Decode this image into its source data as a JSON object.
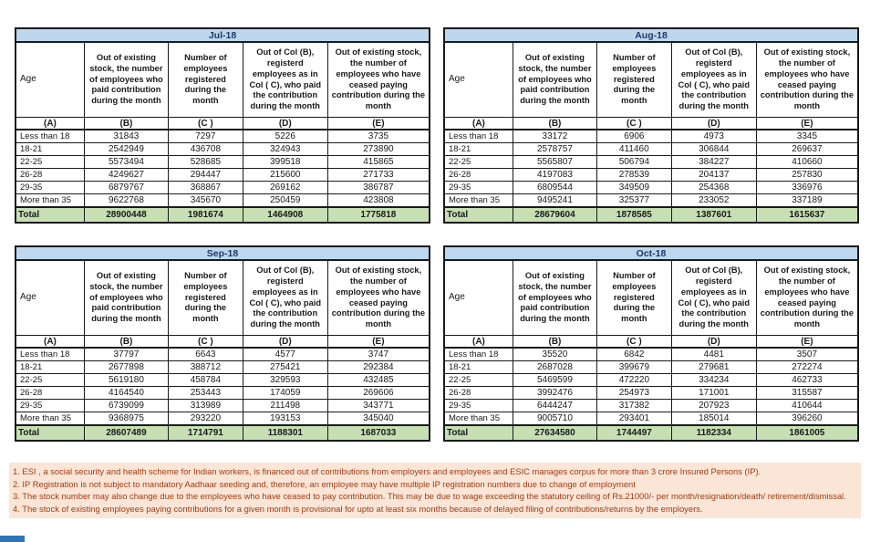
{
  "table_headers": {
    "age_label": "Age",
    "col_descriptions": [
      "Out of existing stock, the number of employees who paid contribution during the month",
      "Number of employees registered during the month",
      "Out of Col (B), registerd employees as in Col ( C), who paid the contribution during the month",
      "Out of existing stock, the number of  employees who have ceased paying contribution during the month"
    ],
    "column_letters": [
      "(A)",
      "(B)",
      "(C )",
      "(D)",
      "(E)"
    ]
  },
  "age_groups": [
    "Less than 18",
    "18-21",
    "22-25",
    "26-28",
    "29-35",
    "More than 35"
  ],
  "total_label": "Total",
  "months": [
    {
      "title": "Jul-18",
      "rows": [
        [
          "31843",
          "7297",
          "5226",
          "3735"
        ],
        [
          "2542949",
          "436708",
          "324943",
          "273890"
        ],
        [
          "5573494",
          "528685",
          "399518",
          "415865"
        ],
        [
          "4249627",
          "294447",
          "215600",
          "271733"
        ],
        [
          "6879767",
          "368867",
          "269162",
          "386787"
        ],
        [
          "9622768",
          "345670",
          "250459",
          "423808"
        ]
      ],
      "totals": [
        "28900448",
        "1981674",
        "1464908",
        "1775818"
      ]
    },
    {
      "title": "Aug-18",
      "rows": [
        [
          "33172",
          "6906",
          "4973",
          "3345"
        ],
        [
          "2578757",
          "411460",
          "306844",
          "269637"
        ],
        [
          "5565807",
          "506794",
          "384227",
          "410660"
        ],
        [
          "4197083",
          "278539",
          "204137",
          "257830"
        ],
        [
          "6809544",
          "349509",
          "254368",
          "336976"
        ],
        [
          "9495241",
          "325377",
          "233052",
          "337189"
        ]
      ],
      "totals": [
        "28679604",
        "1878585",
        "1387601",
        "1615637"
      ]
    },
    {
      "title": "Sep-18",
      "rows": [
        [
          "37797",
          "6643",
          "4577",
          "3747"
        ],
        [
          "2677898",
          "388712",
          "275421",
          "292384"
        ],
        [
          "5619180",
          "458784",
          "329593",
          "432485"
        ],
        [
          "4164540",
          "253443",
          "174059",
          "269606"
        ],
        [
          "6739099",
          "313989",
          "211498",
          "343771"
        ],
        [
          "9368975",
          "293220",
          "193153",
          "345040"
        ]
      ],
      "totals": [
        "28607489",
        "1714791",
        "1188301",
        "1687033"
      ]
    },
    {
      "title": "Oct-18",
      "rows": [
        [
          "35520",
          "6842",
          "4481",
          "3507"
        ],
        [
          "2687028",
          "399679",
          "279681",
          "272274"
        ],
        [
          "5469599",
          "472220",
          "334234",
          "462733"
        ],
        [
          "3992476",
          "254973",
          "171001",
          "315587"
        ],
        [
          "6444247",
          "317382",
          "207923",
          "410644"
        ],
        [
          "9005710",
          "293401",
          "185014",
          "396260"
        ]
      ],
      "totals": [
        "27634580",
        "1744497",
        "1182334",
        "1861005"
      ]
    }
  ],
  "footnotes": [
    "1. ESI , a social security and health scheme for Indian workers, is financed out of contributions from employers and employees and ESIC manages corpus for more than 3 crore Insured Persons (IP).",
    "2. IP Registration is not subject to mandatory Aadhaar seeding and, therefore, an employee may have multiple IP registration numbers due to change of employment",
    "3. The stock number may also change due to the employees who have ceased to pay contribution. This may  be due to wage exceeding the statutory ceiling of  Rs.21000/- per month/resignation/death/ retirement/dismissal.",
    "4. The stock of existing employees paying contributions for a given month is provisional for upto at least six months because of delayed filing of contributions/returns by the employers."
  ],
  "colors": {
    "month_header_bg": "#BDD7EE",
    "month_header_text": "#1F3864",
    "total_row_bg": "#C6E0B4",
    "footnote_bg": "#FBE5D6",
    "footnote_text": "#9E3B12",
    "table_border": "#1a1a1a",
    "accent_bar": "#2E75B6"
  }
}
